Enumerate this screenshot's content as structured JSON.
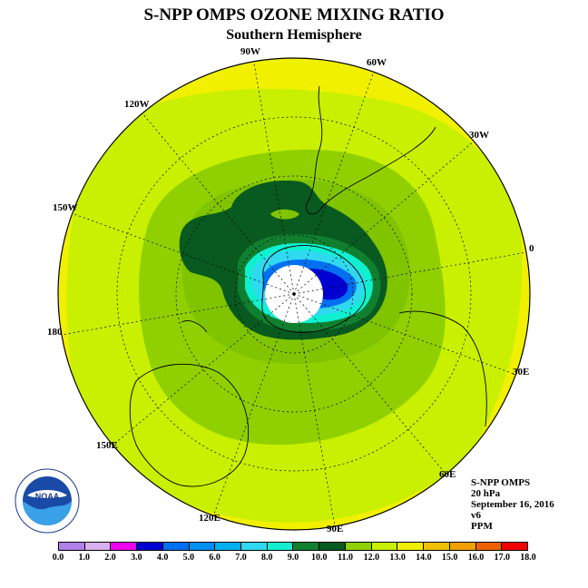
{
  "header": {
    "title": "S-NPP OMPS OZONE MIXING RATIO",
    "subtitle": "Southern Hemisphere"
  },
  "map": {
    "longitude_labels": [
      "90W",
      "60W",
      "30W",
      "0",
      "30E",
      "60E",
      "90E",
      "120E",
      "150E",
      "180",
      "150W",
      "120W"
    ]
  },
  "info": {
    "instrument": "S-NPP OMPS",
    "level": "20 hPa",
    "date": "September 16, 2016",
    "version": "v6",
    "units": "PPM"
  },
  "logo": {
    "text": "NOAA",
    "icon": "noaa-logo-icon"
  },
  "legend": {
    "ticks": [
      "0.0",
      "1.0",
      "2.0",
      "3.0",
      "4.0",
      "5.0",
      "6.0",
      "7.0",
      "8.0",
      "9.0",
      "10.0",
      "11.0",
      "12.0",
      "13.0",
      "14.0",
      "15.0",
      "16.0",
      "17.0",
      "18.0"
    ],
    "colors": [
      "#b080e8",
      "#d8b0f0",
      "#f000f0",
      "#0000d0",
      "#0070f0",
      "#0090f0",
      "#00b0f0",
      "#30d8f0",
      "#10f0d0",
      "#108030",
      "#085a20",
      "#90d000",
      "#c8f000",
      "#f0f000",
      "#f0c000",
      "#f0a000",
      "#f06000",
      "#f00000",
      "#806040"
    ]
  }
}
